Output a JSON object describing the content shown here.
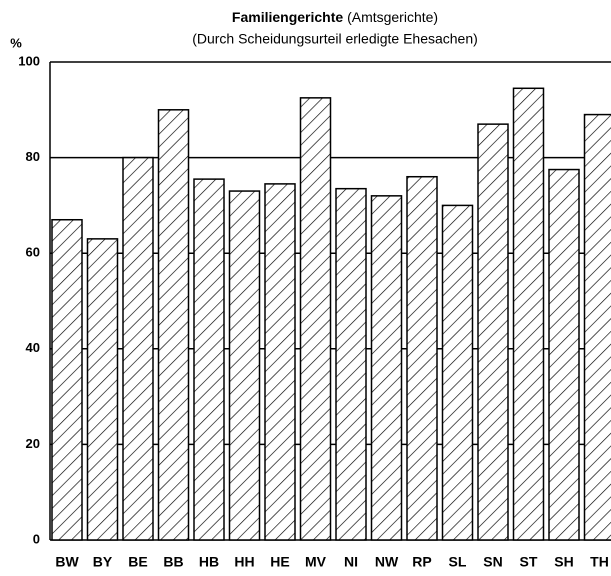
{
  "chart_data": {
    "type": "bar",
    "title": "Familiengerichte",
    "title_suffix": "(Amtsgerichte)",
    "subtitle": "(Durch Scheidungsurteil erledigte Ehesachen)",
    "y_label": "%",
    "categories": [
      "BW",
      "BY",
      "BE",
      "BB",
      "HB",
      "HH",
      "HE",
      "MV",
      "NI",
      "NW",
      "RP",
      "SL",
      "SN",
      "ST",
      "SH",
      "TH"
    ],
    "values": [
      67,
      63,
      80,
      90,
      75.5,
      73,
      74.5,
      92.5,
      73.5,
      72,
      76,
      70,
      87,
      94.5,
      77.5,
      89
    ],
    "color": "#000000",
    "ylim": [
      0,
      100
    ],
    "yticks": [
      0,
      20,
      40,
      60,
      80,
      100
    ],
    "grid": true
  }
}
